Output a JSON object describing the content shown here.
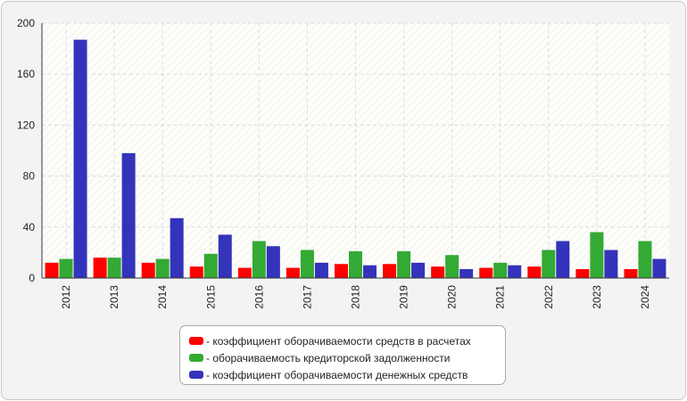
{
  "chart_data": {
    "type": "bar",
    "categories": [
      "2012",
      "2013",
      "2014",
      "2015",
      "2016",
      "2017",
      "2018",
      "2019",
      "2020",
      "2021",
      "2022",
      "2023",
      "2024"
    ],
    "series": [
      {
        "name": "- коэффициент оборачиваемости средств в расчетах",
        "color": "#ff0000",
        "values": [
          12,
          16,
          12,
          9,
          8,
          8,
          11,
          11,
          9,
          8,
          9,
          7,
          7
        ]
      },
      {
        "name": "- оборачиваемость кредиторской задолженности",
        "color": "#33aa33",
        "values": [
          15,
          16,
          15,
          19,
          29,
          22,
          21,
          21,
          18,
          12,
          22,
          36,
          29
        ]
      },
      {
        "name": "- коэффициент оборачиваемости денежных средств",
        "color": "#3333bb",
        "values": [
          187,
          98,
          47,
          34,
          25,
          12,
          10,
          12,
          7,
          10,
          29,
          22,
          15
        ]
      }
    ],
    "yticks": [
      "0",
      "40",
      "80",
      "120",
      "160",
      "200"
    ],
    "ylim": [
      0,
      200
    ],
    "grid": true,
    "legend_position": "bottom-center",
    "title": "",
    "xlabel": "",
    "ylabel": ""
  }
}
